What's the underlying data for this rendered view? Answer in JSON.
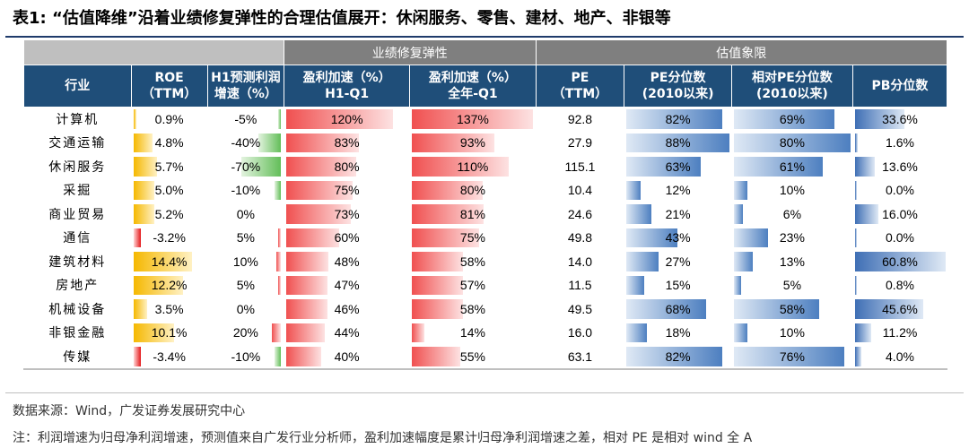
{
  "title": "表1:  “估值降维”沿着业绩修复弹性的合理估值展开：休闲服务、零售、建材、地产、非银等",
  "groups": {
    "perf": "业绩修复弹性",
    "val": "估值象限"
  },
  "headers": {
    "industry": [
      "行业"
    ],
    "roe": [
      "ROE",
      "（TTM）"
    ],
    "h1f": [
      "H1预测利润",
      "增速（%）"
    ],
    "acc1": [
      "盈利加速（%）",
      "H1-Q1"
    ],
    "acc2": [
      "盈利加速（%）",
      "全年-Q1"
    ],
    "pe": [
      "PE",
      "（TTM）"
    ],
    "pep": [
      "PE分位数",
      "(2010以来)"
    ],
    "rpep": [
      "相对PE分位数",
      "(2010以来)"
    ],
    "pbp": [
      "PB分位数"
    ]
  },
  "rows": [
    {
      "name": "计算机",
      "roe": "0.9%",
      "h1f": "-5%",
      "acc1": "120%",
      "acc2": "137%",
      "pe": "92.8",
      "pep": "82%",
      "rpep": "69%",
      "pbp": "33.6%"
    },
    {
      "name": "交通运输",
      "roe": "4.8%",
      "h1f": "-40%",
      "acc1": "83%",
      "acc2": "93%",
      "pe": "27.9",
      "pep": "88%",
      "rpep": "80%",
      "pbp": "1.6%"
    },
    {
      "name": "休闲服务",
      "roe": "5.7%",
      "h1f": "-70%",
      "acc1": "80%",
      "acc2": "110%",
      "pe": "115.1",
      "pep": "63%",
      "rpep": "61%",
      "pbp": "13.6%"
    },
    {
      "name": "采掘",
      "roe": "5.0%",
      "h1f": "-10%",
      "acc1": "75%",
      "acc2": "80%",
      "pe": "10.4",
      "pep": "12%",
      "rpep": "10%",
      "pbp": "0.0%"
    },
    {
      "name": "商业贸易",
      "roe": "5.2%",
      "h1f": "0%",
      "acc1": "73%",
      "acc2": "81%",
      "pe": "24.6",
      "pep": "21%",
      "rpep": "6%",
      "pbp": "16.0%"
    },
    {
      "name": "通信",
      "roe": "-3.2%",
      "h1f": "5%",
      "acc1": "60%",
      "acc2": "75%",
      "pe": "49.8",
      "pep": "43%",
      "rpep": "23%",
      "pbp": "0.0%"
    },
    {
      "name": "建筑材料",
      "roe": "14.4%",
      "h1f": "10%",
      "acc1": "48%",
      "acc2": "58%",
      "pe": "14.0",
      "pep": "27%",
      "rpep": "13%",
      "pbp": "60.8%"
    },
    {
      "name": "房地产",
      "roe": "12.2%",
      "h1f": "5%",
      "acc1": "47%",
      "acc2": "57%",
      "pe": "11.5",
      "pep": "15%",
      "rpep": "5%",
      "pbp": "0.8%"
    },
    {
      "name": "机械设备",
      "roe": "3.5%",
      "h1f": "0%",
      "acc1": "46%",
      "acc2": "58%",
      "pe": "49.5",
      "pep": "68%",
      "rpep": "58%",
      "pbp": "45.6%"
    },
    {
      "name": "非银金融",
      "roe": "10.1%",
      "h1f": "20%",
      "acc1": "44%",
      "acc2": "14%",
      "pe": "16.0",
      "pep": "18%",
      "rpep": "10%",
      "pbp": "11.2%"
    },
    {
      "name": "传媒",
      "roe": "-3.4%",
      "h1f": "-10%",
      "acc1": "40%",
      "acc2": "55%",
      "pe": "63.1",
      "pep": "82%",
      "rpep": "76%",
      "pbp": "4.0%"
    }
  ],
  "bar_levels": {
    "roe": [
      0.05,
      0.33,
      0.4,
      0.35,
      0.36,
      -0.22,
      1.0,
      0.85,
      0.24,
      0.7,
      -0.24
    ],
    "h1f": [
      -0.07,
      -0.57,
      -1.0,
      -0.14,
      0,
      0.25,
      0.5,
      0.25,
      0,
      1.0,
      -0.14
    ],
    "acc1": [
      0.88,
      0.6,
      0.58,
      0.55,
      0.53,
      0.44,
      0.35,
      0.34,
      0.34,
      0.32,
      0.29
    ],
    "acc2": [
      1.0,
      0.68,
      0.8,
      0.58,
      0.59,
      0.55,
      0.42,
      0.42,
      0.42,
      0.1,
      0.4
    ],
    "pep": [
      0.93,
      1.0,
      0.72,
      0.14,
      0.24,
      0.49,
      0.31,
      0.17,
      0.77,
      0.2,
      0.93
    ],
    "rpep": [
      0.86,
      1.0,
      0.76,
      0.12,
      0.08,
      0.29,
      0.16,
      0.06,
      0.73,
      0.12,
      0.95
    ],
    "pbp": [
      0.55,
      0.03,
      0.22,
      0.0,
      0.26,
      0.0,
      1.0,
      0.01,
      0.75,
      0.18,
      0.07
    ]
  },
  "footer": {
    "source": "数据来源：Wind，广发证券发展研究中心",
    "note": "注：利润增速为归母净利润增速，预测值来自广发行业分析师，盈利加速幅度是累计归母净利润增速之差，相对 PE 是相对 wind 全 A"
  }
}
